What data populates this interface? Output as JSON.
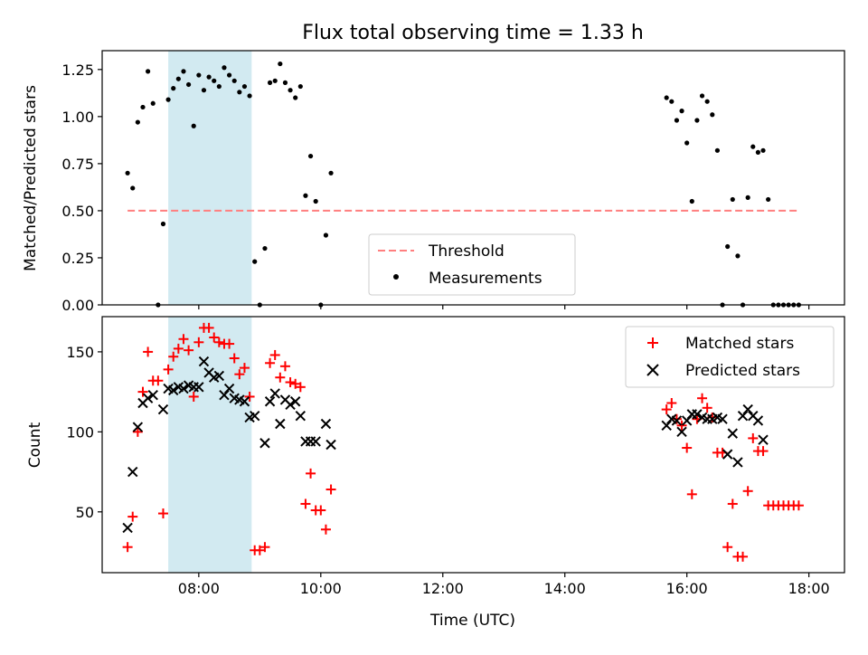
{
  "chart_data": [
    {
      "type": "scatter",
      "title": "Flux total observing time = 1.33 h",
      "xlabel": "",
      "ylabel": "Matched/Predicted stars",
      "xlim": [
        "06:25",
        "18:35"
      ],
      "ylim": [
        0,
        1.35
      ],
      "x_ticks": [
        "08:00",
        "10:00",
        "12:00",
        "14:00",
        "16:00",
        "18:00"
      ],
      "y_ticks": [
        "0.00",
        "0.25",
        "0.50",
        "0.75",
        "1.00",
        "1.25"
      ],
      "x_tick_labels_shown": false,
      "legend_position": "lower-center",
      "highlight_span": {
        "from": "07:30",
        "to": "08:52",
        "color": "#add8e6"
      },
      "series": [
        {
          "name": "Threshold",
          "kind": "dashed-line",
          "color": "#ff7f7f",
          "points": [
            [
              "06:50",
              0.5
            ],
            [
              "17:50",
              0.5
            ]
          ]
        },
        {
          "name": "Measurements",
          "kind": "dot",
          "color": "#000000",
          "points": [
            [
              "06:50",
              0.7
            ],
            [
              "06:55",
              0.62
            ],
            [
              "07:00",
              0.97
            ],
            [
              "07:05",
              1.05
            ],
            [
              "07:10",
              1.24
            ],
            [
              "07:15",
              1.07
            ],
            [
              "07:20",
              0.0
            ],
            [
              "07:25",
              0.43
            ],
            [
              "07:30",
              1.09
            ],
            [
              "07:35",
              1.15
            ],
            [
              "07:40",
              1.2
            ],
            [
              "07:45",
              1.24
            ],
            [
              "07:50",
              1.17
            ],
            [
              "07:55",
              0.95
            ],
            [
              "08:00",
              1.22
            ],
            [
              "08:05",
              1.14
            ],
            [
              "08:10",
              1.21
            ],
            [
              "08:15",
              1.19
            ],
            [
              "08:20",
              1.16
            ],
            [
              "08:25",
              1.26
            ],
            [
              "08:30",
              1.22
            ],
            [
              "08:35",
              1.19
            ],
            [
              "08:40",
              1.13
            ],
            [
              "08:45",
              1.16
            ],
            [
              "08:50",
              1.11
            ],
            [
              "08:55",
              0.23
            ],
            [
              "09:00",
              0.0
            ],
            [
              "09:05",
              0.3
            ],
            [
              "09:10",
              1.18
            ],
            [
              "09:15",
              1.19
            ],
            [
              "09:20",
              1.28
            ],
            [
              "09:25",
              1.18
            ],
            [
              "09:30",
              1.14
            ],
            [
              "09:35",
              1.1
            ],
            [
              "09:40",
              1.16
            ],
            [
              "09:45",
              0.58
            ],
            [
              "09:50",
              0.79
            ],
            [
              "09:55",
              0.55
            ],
            [
              "10:00",
              0.0
            ],
            [
              "10:05",
              0.37
            ],
            [
              "10:10",
              0.7
            ],
            [
              "15:40",
              1.1
            ],
            [
              "15:45",
              1.08
            ],
            [
              "15:50",
              0.98
            ],
            [
              "15:55",
              1.03
            ],
            [
              "16:00",
              0.86
            ],
            [
              "16:05",
              0.55
            ],
            [
              "16:10",
              0.98
            ],
            [
              "16:15",
              1.11
            ],
            [
              "16:20",
              1.08
            ],
            [
              "16:25",
              1.01
            ],
            [
              "16:30",
              0.82
            ],
            [
              "16:35",
              0.0
            ],
            [
              "16:40",
              0.31
            ],
            [
              "16:45",
              0.56
            ],
            [
              "16:50",
              0.26
            ],
            [
              "16:55",
              0.0
            ],
            [
              "17:00",
              0.57
            ],
            [
              "17:05",
              0.84
            ],
            [
              "17:10",
              0.81
            ],
            [
              "17:15",
              0.82
            ],
            [
              "17:20",
              0.56
            ],
            [
              "17:25",
              0.0
            ],
            [
              "17:30",
              0.0
            ],
            [
              "17:35",
              0.0
            ],
            [
              "17:40",
              0.0
            ],
            [
              "17:45",
              0.0
            ],
            [
              "17:50",
              0.0
            ]
          ]
        }
      ]
    },
    {
      "type": "scatter",
      "title": "",
      "xlabel": "Time (UTC)",
      "ylabel": "Count",
      "xlim": [
        "06:25",
        "18:35"
      ],
      "ylim": [
        12,
        172
      ],
      "x_ticks": [
        "08:00",
        "10:00",
        "12:00",
        "14:00",
        "16:00",
        "18:00"
      ],
      "y_ticks": [
        "50",
        "100",
        "150"
      ],
      "legend_position": "top-right",
      "highlight_span": {
        "from": "07:30",
        "to": "08:52",
        "color": "#add8e6"
      },
      "series": [
        {
          "name": "Matched stars",
          "kind": "plus",
          "color": "#ff0000",
          "points": [
            [
              "06:50",
              28
            ],
            [
              "06:55",
              47
            ],
            [
              "07:00",
              100
            ],
            [
              "07:05",
              125
            ],
            [
              "07:10",
              150
            ],
            [
              "07:15",
              132
            ],
            [
              "07:20",
              132
            ],
            [
              "07:25",
              49
            ],
            [
              "07:30",
              139
            ],
            [
              "07:35",
              147
            ],
            [
              "07:40",
              152
            ],
            [
              "07:45",
              158
            ],
            [
              "07:50",
              151
            ],
            [
              "07:55",
              122
            ],
            [
              "08:00",
              156
            ],
            [
              "08:05",
              165
            ],
            [
              "08:10",
              165
            ],
            [
              "08:15",
              159
            ],
            [
              "08:20",
              156
            ],
            [
              "08:25",
              155
            ],
            [
              "08:30",
              155
            ],
            [
              "08:35",
              146
            ],
            [
              "08:40",
              136
            ],
            [
              "08:45",
              140
            ],
            [
              "08:50",
              122
            ],
            [
              "08:55",
              26
            ],
            [
              "09:00",
              26
            ],
            [
              "09:05",
              28
            ],
            [
              "09:10",
              143
            ],
            [
              "09:15",
              148
            ],
            [
              "09:20",
              134
            ],
            [
              "09:25",
              141
            ],
            [
              "09:30",
              131
            ],
            [
              "09:35",
              130
            ],
            [
              "09:40",
              128
            ],
            [
              "09:45",
              55
            ],
            [
              "09:50",
              74
            ],
            [
              "09:55",
              51
            ],
            [
              "10:00",
              51
            ],
            [
              "10:05",
              39
            ],
            [
              "10:10",
              64
            ],
            [
              "15:40",
              114
            ],
            [
              "15:45",
              118
            ],
            [
              "15:50",
              108
            ],
            [
              "15:55",
              104
            ],
            [
              "16:00",
              90
            ],
            [
              "16:05",
              61
            ],
            [
              "16:10",
              108
            ],
            [
              "16:15",
              121
            ],
            [
              "16:20",
              115
            ],
            [
              "16:25",
              109
            ],
            [
              "16:30",
              87
            ],
            [
              "16:35",
              87
            ],
            [
              "16:40",
              28
            ],
            [
              "16:45",
              55
            ],
            [
              "16:50",
              22
            ],
            [
              "16:55",
              22
            ],
            [
              "17:00",
              63
            ],
            [
              "17:05",
              96
            ],
            [
              "17:10",
              88
            ],
            [
              "17:15",
              88
            ],
            [
              "17:20",
              54
            ],
            [
              "17:25",
              54
            ],
            [
              "17:30",
              54
            ],
            [
              "17:35",
              54
            ],
            [
              "17:40",
              54
            ],
            [
              "17:45",
              54
            ],
            [
              "17:50",
              54
            ]
          ]
        },
        {
          "name": "Predicted stars",
          "kind": "x",
          "color": "#000000",
          "points": [
            [
              "06:50",
              40
            ],
            [
              "06:55",
              75
            ],
            [
              "07:00",
              103
            ],
            [
              "07:05",
              118
            ],
            [
              "07:10",
              121
            ],
            [
              "07:15",
              123
            ],
            [
              "07:25",
              114
            ],
            [
              "07:30",
              127
            ],
            [
              "07:35",
              126
            ],
            [
              "07:40",
              128
            ],
            [
              "07:45",
              127
            ],
            [
              "07:50",
              129
            ],
            [
              "07:55",
              128
            ],
            [
              "08:00",
              128
            ],
            [
              "08:05",
              144
            ],
            [
              "08:10",
              137
            ],
            [
              "08:15",
              134
            ],
            [
              "08:20",
              135
            ],
            [
              "08:25",
              123
            ],
            [
              "08:30",
              127
            ],
            [
              "08:35",
              121
            ],
            [
              "08:40",
              120
            ],
            [
              "08:45",
              119
            ],
            [
              "08:50",
              109
            ],
            [
              "08:55",
              110
            ],
            [
              "09:05",
              93
            ],
            [
              "09:10",
              119
            ],
            [
              "09:15",
              124
            ],
            [
              "09:20",
              105
            ],
            [
              "09:25",
              120
            ],
            [
              "09:30",
              117
            ],
            [
              "09:35",
              119
            ],
            [
              "09:40",
              110
            ],
            [
              "09:45",
              94
            ],
            [
              "09:50",
              94
            ],
            [
              "09:55",
              94
            ],
            [
              "10:05",
              105
            ],
            [
              "10:10",
              92
            ],
            [
              "15:40",
              104
            ],
            [
              "15:45",
              108
            ],
            [
              "15:50",
              107
            ],
            [
              "15:55",
              100
            ],
            [
              "16:00",
              107
            ],
            [
              "16:05",
              111
            ],
            [
              "16:10",
              111
            ],
            [
              "16:15",
              109
            ],
            [
              "16:20",
              108
            ],
            [
              "16:25",
              108
            ],
            [
              "16:30",
              109
            ],
            [
              "16:35",
              108
            ],
            [
              "16:40",
              86
            ],
            [
              "16:45",
              99
            ],
            [
              "16:50",
              81
            ],
            [
              "16:55",
              110
            ],
            [
              "17:00",
              114
            ],
            [
              "17:05",
              110
            ],
            [
              "17:10",
              107
            ],
            [
              "17:15",
              95
            ]
          ]
        }
      ]
    }
  ]
}
